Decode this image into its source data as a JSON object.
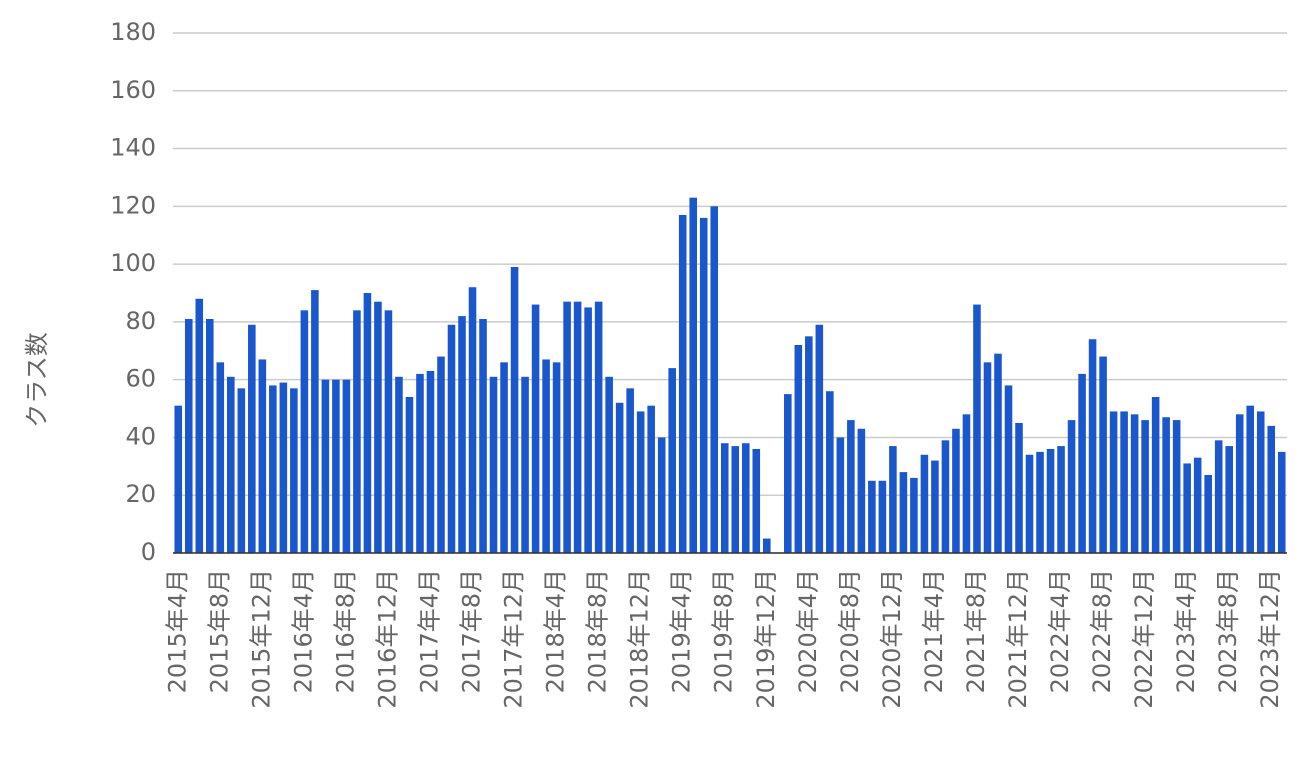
{
  "chart_data": {
    "type": "bar",
    "y_label": "クラス数",
    "categories": [
      "2015年4月",
      null,
      null,
      null,
      "2015年8月",
      null,
      null,
      null,
      "2015年12月",
      null,
      null,
      null,
      "2016年4月",
      null,
      null,
      null,
      "2016年8月",
      null,
      null,
      null,
      "2016年12月",
      null,
      null,
      null,
      "2017年4月",
      null,
      null,
      null,
      "2017年8月",
      null,
      null,
      null,
      "2017年12月",
      null,
      null,
      null,
      "2018年4月",
      null,
      null,
      null,
      "2018年8月",
      null,
      null,
      null,
      "2018年12月",
      null,
      null,
      null,
      "2019年4月",
      null,
      null,
      null,
      "2019年8月",
      null,
      null,
      null,
      "2019年12月",
      null,
      null,
      null,
      "2020年4月",
      null,
      null,
      null,
      "2020年8月",
      null,
      null,
      null,
      "2020年12月",
      null,
      null,
      null,
      "2021年4月",
      null,
      null,
      null,
      "2021年8月",
      null,
      null,
      null,
      "2021年12月",
      null,
      null,
      null,
      "2022年4月",
      null,
      null,
      null,
      "2022年8月",
      null,
      null,
      null,
      "2022年12月",
      null,
      null,
      null,
      "2023年4月",
      null,
      null,
      null,
      "2023年8月",
      null,
      null,
      null,
      "2023年12月",
      null
    ],
    "values": [
      51,
      81,
      88,
      81,
      66,
      61,
      57,
      79,
      67,
      58,
      59,
      57,
      84,
      91,
      60,
      60,
      60,
      84,
      90,
      87,
      84,
      61,
      54,
      62,
      63,
      68,
      79,
      82,
      92,
      81,
      61,
      66,
      99,
      61,
      86,
      67,
      66,
      87,
      87,
      85,
      87,
      61,
      52,
      57,
      49,
      51,
      40,
      64,
      117,
      123,
      116,
      120,
      38,
      37,
      38,
      36,
      5,
      null,
      55,
      72,
      75,
      79,
      56,
      40,
      46,
      43,
      25,
      25,
      37,
      28,
      26,
      34,
      32,
      39,
      43,
      48,
      86,
      66,
      69,
      58,
      45,
      34,
      35,
      36,
      37,
      46,
      62,
      74,
      68,
      49,
      49,
      48,
      46,
      54,
      47,
      46,
      31,
      33,
      27,
      39,
      37,
      48,
      51,
      49,
      44,
      35
    ],
    "color": "#1a56cc",
    "ylim": [
      0,
      180
    ],
    "yticks": [
      0,
      20,
      40,
      60,
      80,
      100,
      120,
      140,
      160,
      180
    ],
    "grid": true
  }
}
